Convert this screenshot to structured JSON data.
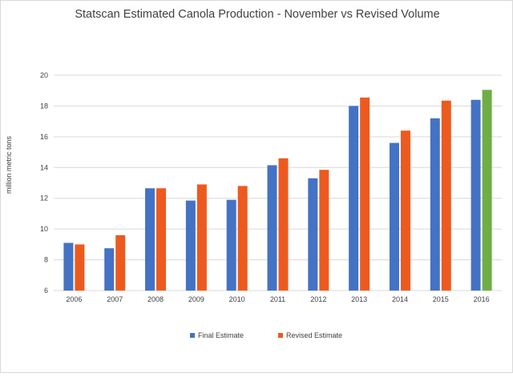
{
  "chart_data": {
    "type": "bar",
    "title": "Statscan Estimated Canola Production - November vs Revised Volume",
    "xlabel": "",
    "ylabel": "million metric tons",
    "ylim": [
      6,
      20
    ],
    "yticks": [
      6,
      8,
      10,
      12,
      14,
      16,
      18,
      20
    ],
    "grid": true,
    "legend_position": "bottom",
    "categories": [
      "2006",
      "2007",
      "2008",
      "2009",
      "2010",
      "2011",
      "2012",
      "2013",
      "2014",
      "2015",
      "2016"
    ],
    "series": [
      {
        "name": "Final Estimate",
        "color": "#4472c4",
        "values": [
          9.1,
          8.75,
          12.65,
          11.85,
          11.9,
          14.15,
          13.3,
          18.0,
          15.6,
          17.2,
          18.4
        ]
      },
      {
        "name": "Revised Estimate",
        "color": "#ed5a1f",
        "values": [
          9.0,
          9.6,
          12.65,
          12.9,
          12.8,
          14.6,
          13.85,
          18.55,
          16.4,
          18.35,
          19.05
        ]
      }
    ],
    "highlight": {
      "category": "2016",
      "series": "Revised Estimate",
      "color": "#70ad47"
    }
  }
}
